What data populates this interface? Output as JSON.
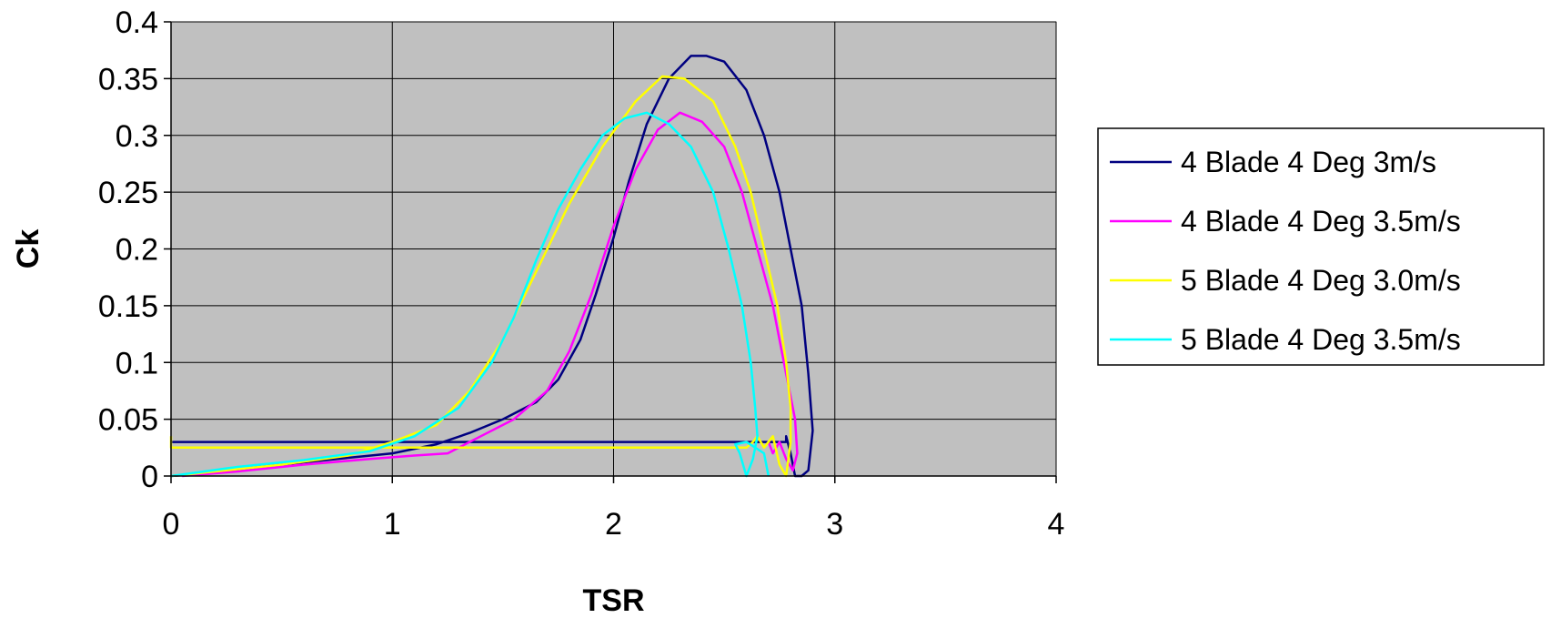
{
  "chart_data": {
    "type": "line",
    "title": "",
    "xlabel": "TSR",
    "ylabel": "Ck",
    "xlim": [
      0,
      4
    ],
    "ylim": [
      0,
      0.4
    ],
    "x_ticks": [
      "0",
      "1",
      "2",
      "3",
      "4"
    ],
    "y_ticks": [
      "0",
      "0.05",
      "0.1",
      "0.15",
      "0.2",
      "0.25",
      "0.3",
      "0.35",
      "0.4"
    ],
    "grid": true,
    "plot_background": "#c0c0c0",
    "legend_position": "right",
    "series": [
      {
        "name": "4 Blade 4 Deg 3m/s",
        "color": "#000080",
        "points": [
          [
            0.0,
            0.03
          ],
          [
            2.78,
            0.03
          ],
          [
            2.78,
            0.035
          ],
          [
            2.8,
            0.02
          ],
          [
            2.82,
            0.0
          ],
          [
            2.85,
            0.0
          ],
          [
            2.88,
            0.005
          ],
          [
            2.9,
            0.04
          ],
          [
            2.88,
            0.09
          ],
          [
            2.85,
            0.15
          ],
          [
            2.8,
            0.2
          ],
          [
            2.75,
            0.25
          ],
          [
            2.68,
            0.3
          ],
          [
            2.6,
            0.34
          ],
          [
            2.5,
            0.365
          ],
          [
            2.42,
            0.37
          ],
          [
            2.35,
            0.37
          ],
          [
            2.25,
            0.35
          ],
          [
            2.15,
            0.31
          ],
          [
            2.07,
            0.26
          ],
          [
            2.0,
            0.21
          ],
          [
            1.92,
            0.16
          ],
          [
            1.85,
            0.12
          ],
          [
            1.75,
            0.085
          ],
          [
            1.65,
            0.065
          ],
          [
            1.5,
            0.05
          ],
          [
            1.35,
            0.038
          ],
          [
            1.2,
            0.028
          ],
          [
            1.1,
            0.024
          ],
          [
            1.0,
            0.02
          ],
          [
            0.8,
            0.016
          ],
          [
            0.6,
            0.012
          ],
          [
            0.4,
            0.008
          ],
          [
            0.2,
            0.003
          ],
          [
            0.0,
            0.0
          ]
        ]
      },
      {
        "name": "4 Blade 4 Deg 3.5m/s",
        "color": "#ff00ff",
        "points": [
          [
            0.05,
            0.0
          ],
          [
            0.3,
            0.004
          ],
          [
            0.6,
            0.01
          ],
          [
            0.9,
            0.015
          ],
          [
            1.1,
            0.018
          ],
          [
            1.25,
            0.02
          ],
          [
            1.4,
            0.035
          ],
          [
            1.55,
            0.05
          ],
          [
            1.7,
            0.075
          ],
          [
            1.8,
            0.11
          ],
          [
            1.9,
            0.16
          ],
          [
            2.0,
            0.22
          ],
          [
            2.1,
            0.27
          ],
          [
            2.2,
            0.305
          ],
          [
            2.3,
            0.32
          ],
          [
            2.4,
            0.312
          ],
          [
            2.5,
            0.29
          ],
          [
            2.58,
            0.25
          ],
          [
            2.65,
            0.2
          ],
          [
            2.72,
            0.15
          ],
          [
            2.78,
            0.09
          ],
          [
            2.82,
            0.05
          ],
          [
            2.83,
            0.02
          ],
          [
            2.81,
            0.005
          ],
          [
            2.78,
            0.015
          ],
          [
            2.75,
            0.03
          ],
          [
            2.72,
            0.02
          ],
          [
            2.7,
            0.03
          ]
        ]
      },
      {
        "name": "5 Blade 4 Deg 3.0m/s",
        "color": "#ffff00",
        "points": [
          [
            0.0,
            0.035
          ],
          [
            0.0,
            0.025
          ],
          [
            2.6,
            0.025
          ],
          [
            2.63,
            0.03
          ],
          [
            2.65,
            0.035
          ],
          [
            2.68,
            0.025
          ],
          [
            2.72,
            0.035
          ],
          [
            2.75,
            0.01
          ],
          [
            2.78,
            0.0
          ],
          [
            2.8,
            0.03
          ],
          [
            2.8,
            0.06
          ],
          [
            2.78,
            0.1
          ],
          [
            2.74,
            0.15
          ],
          [
            2.68,
            0.2
          ],
          [
            2.62,
            0.25
          ],
          [
            2.55,
            0.29
          ],
          [
            2.45,
            0.33
          ],
          [
            2.32,
            0.35
          ],
          [
            2.22,
            0.352
          ],
          [
            2.1,
            0.33
          ],
          [
            1.95,
            0.29
          ],
          [
            1.8,
            0.24
          ],
          [
            1.65,
            0.18
          ],
          [
            1.5,
            0.12
          ],
          [
            1.35,
            0.075
          ],
          [
            1.2,
            0.045
          ],
          [
            1.0,
            0.03
          ],
          [
            0.8,
            0.018
          ],
          [
            0.5,
            0.01
          ],
          [
            0.2,
            0.004
          ],
          [
            0.0,
            0.0
          ]
        ]
      },
      {
        "name": "5 Blade 4 Deg 3.5m/s",
        "color": "#00ffff",
        "points": [
          [
            0.0,
            0.0
          ],
          [
            0.3,
            0.008
          ],
          [
            0.6,
            0.014
          ],
          [
            0.9,
            0.022
          ],
          [
            1.1,
            0.035
          ],
          [
            1.3,
            0.06
          ],
          [
            1.45,
            0.1
          ],
          [
            1.55,
            0.14
          ],
          [
            1.65,
            0.19
          ],
          [
            1.75,
            0.235
          ],
          [
            1.85,
            0.27
          ],
          [
            1.95,
            0.3
          ],
          [
            2.05,
            0.315
          ],
          [
            2.15,
            0.32
          ],
          [
            2.25,
            0.31
          ],
          [
            2.35,
            0.29
          ],
          [
            2.45,
            0.25
          ],
          [
            2.52,
            0.2
          ],
          [
            2.58,
            0.15
          ],
          [
            2.62,
            0.1
          ],
          [
            2.64,
            0.06
          ],
          [
            2.65,
            0.035
          ],
          [
            2.63,
            0.015
          ],
          [
            2.6,
            0.0
          ],
          [
            2.57,
            0.02
          ],
          [
            2.55,
            0.028
          ],
          [
            2.6,
            0.03
          ],
          [
            2.68,
            0.02
          ],
          [
            2.7,
            0.0
          ]
        ]
      }
    ]
  }
}
